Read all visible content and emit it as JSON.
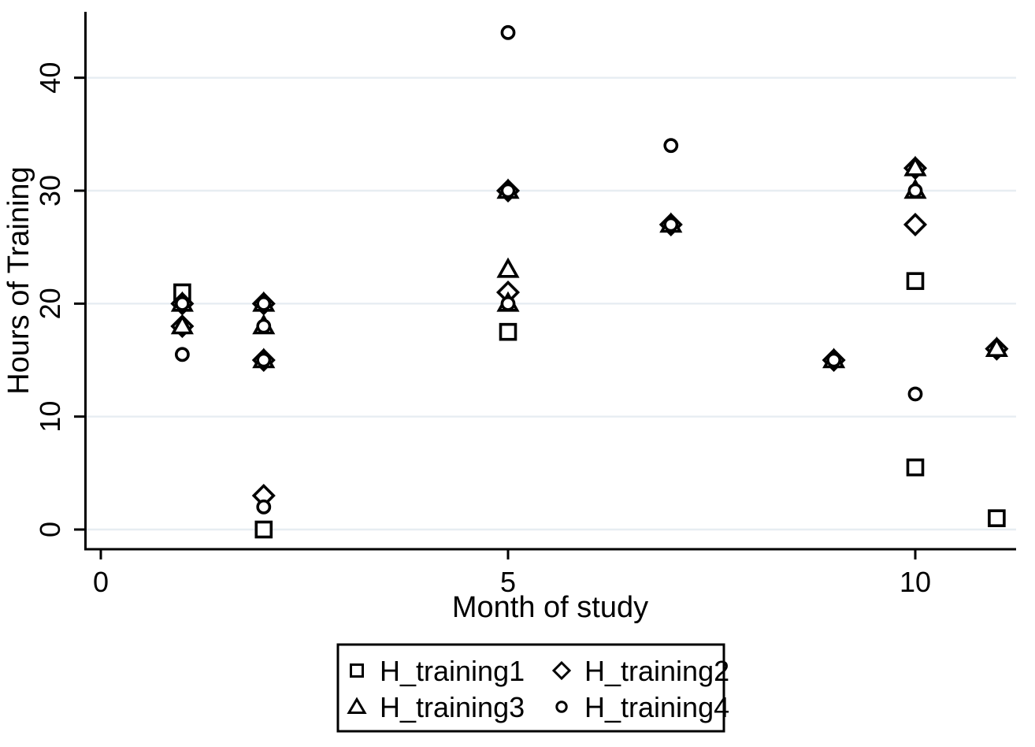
{
  "chart_data": {
    "type": "scatter",
    "title": "",
    "xlabel": "Month of study",
    "ylabel": "Hours of Training",
    "x_ticks": [
      "0",
      "5",
      "10"
    ],
    "x_tick_values": [
      0,
      5,
      10
    ],
    "y_ticks": [
      "0",
      "10",
      "20",
      "30",
      "40"
    ],
    "y_tick_values": [
      0,
      10,
      20,
      30,
      40
    ],
    "xlim": [
      -0.2,
      11.25
    ],
    "ylim": [
      -1.75,
      45.9
    ],
    "grid": true,
    "grid_axis": "y",
    "legend_position": "bottom",
    "legend_columns": 2,
    "series": [
      {
        "name": "H_training1",
        "marker": "square",
        "points": [
          [
            1,
            21
          ],
          [
            2,
            0
          ],
          [
            5,
            17.5
          ],
          [
            10,
            22
          ],
          [
            10,
            5.5
          ],
          [
            11,
            1
          ]
        ]
      },
      {
        "name": "H_training2",
        "marker": "diamond",
        "points": [
          [
            1,
            20
          ],
          [
            1,
            18
          ],
          [
            2,
            20
          ],
          [
            2,
            15
          ],
          [
            2,
            3
          ],
          [
            5,
            30
          ],
          [
            5,
            21
          ],
          [
            7,
            27
          ],
          [
            9,
            15
          ],
          [
            10,
            32
          ],
          [
            10,
            27
          ],
          [
            11,
            16
          ]
        ]
      },
      {
        "name": "H_training3",
        "marker": "triangle",
        "points": [
          [
            1,
            20
          ],
          [
            1,
            18
          ],
          [
            2,
            20
          ],
          [
            2,
            18
          ],
          [
            2,
            15
          ],
          [
            5,
            30
          ],
          [
            5,
            23
          ],
          [
            5,
            20
          ],
          [
            7,
            27
          ],
          [
            9,
            15
          ],
          [
            10,
            32
          ],
          [
            10,
            30
          ],
          [
            11,
            16
          ]
        ]
      },
      {
        "name": "H_training4",
        "marker": "circle",
        "points": [
          [
            1,
            20
          ],
          [
            1,
            15.5
          ],
          [
            2,
            20
          ],
          [
            2,
            18
          ],
          [
            2,
            15
          ],
          [
            2,
            2
          ],
          [
            5,
            44
          ],
          [
            5,
            30
          ],
          [
            5,
            20
          ],
          [
            7,
            34
          ],
          [
            7,
            27
          ],
          [
            9,
            15
          ],
          [
            10,
            30
          ],
          [
            10,
            12
          ]
        ]
      }
    ],
    "colors": {
      "marker_stroke": "#000000",
      "marker_fill": "#ffffff",
      "grid_line": "#e7edf2",
      "axis": "#000000",
      "background": "#ffffff",
      "legend_border": "#000000",
      "legend_background": "#ffffff"
    }
  }
}
